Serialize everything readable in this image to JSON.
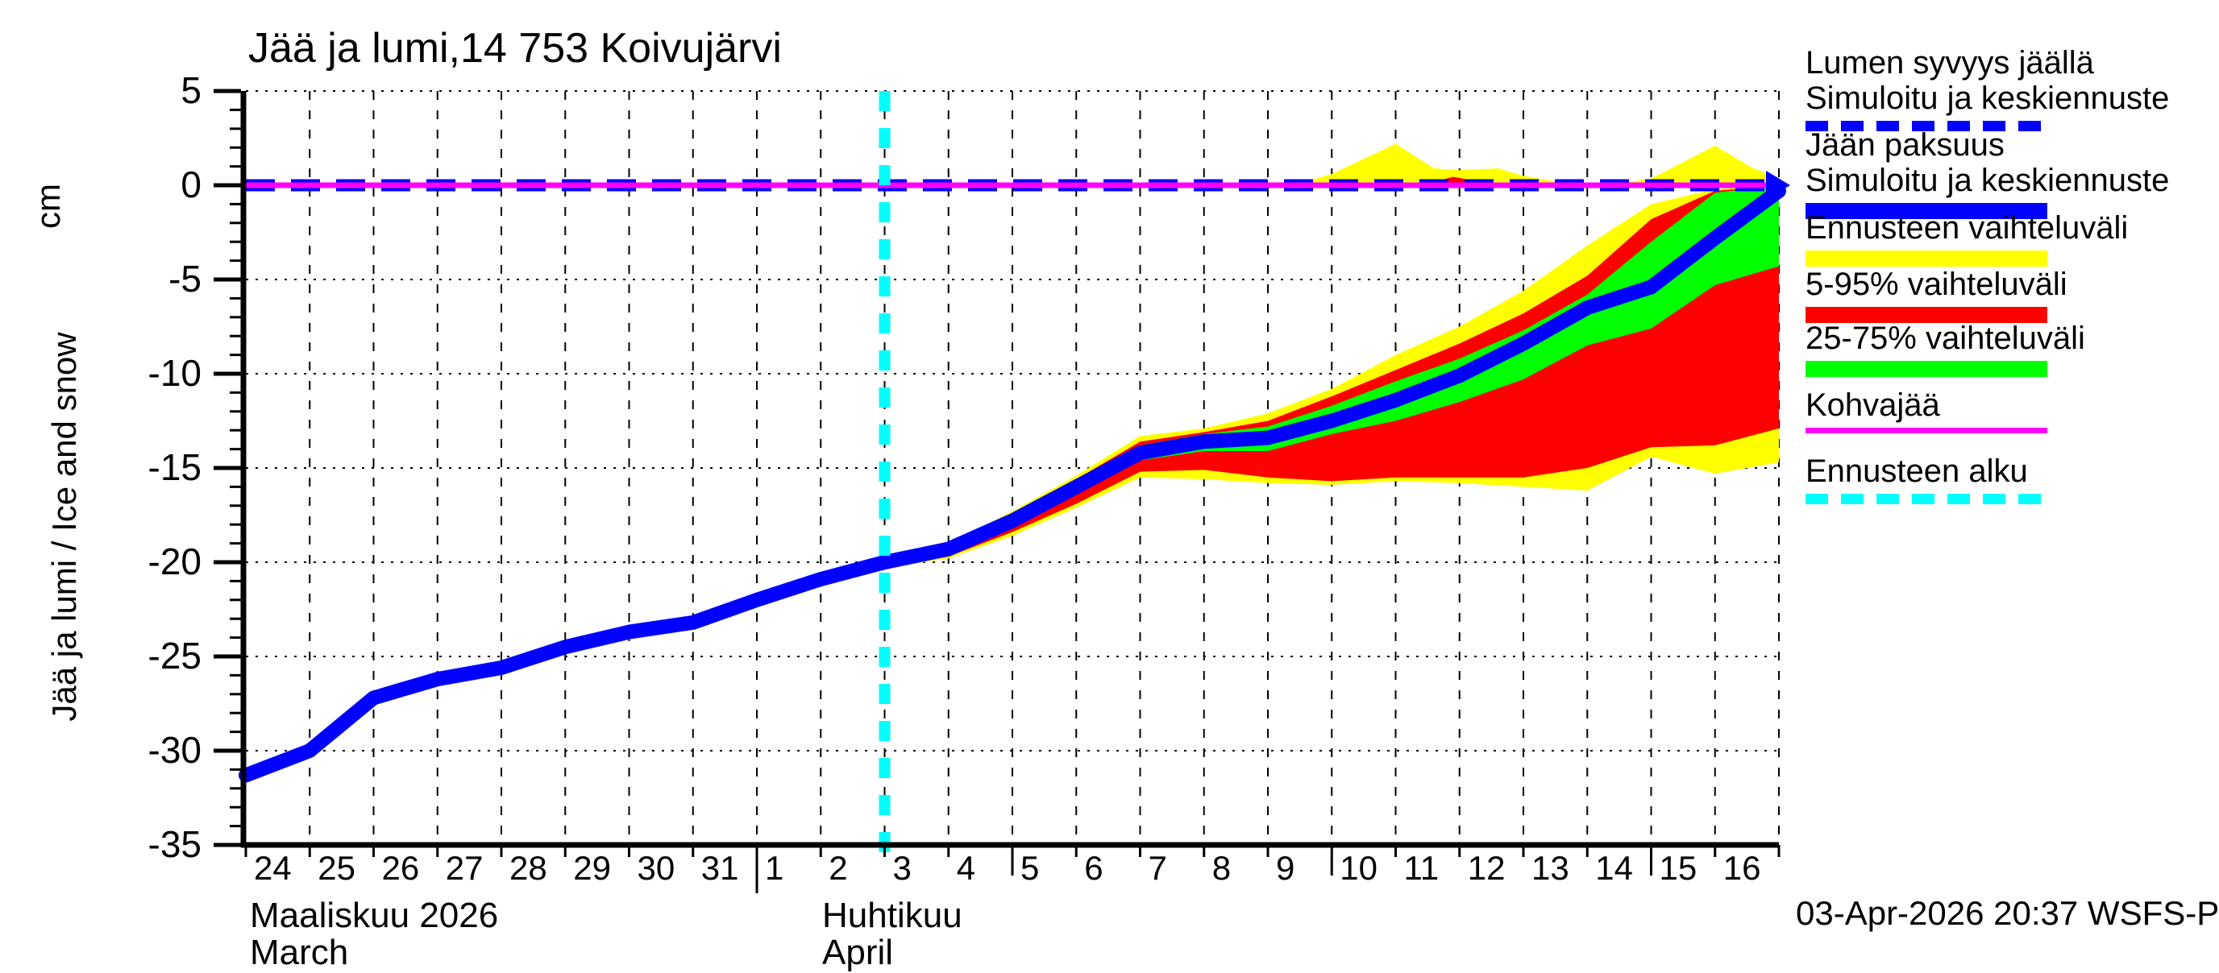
{
  "title": "Jää ja lumi,14 753 Koivujärvi",
  "footer": "03-Apr-2026 20:37 WSFS-P",
  "y_axis": {
    "label": "Jää ja lumi / Ice and snow",
    "unit": "cm",
    "ticks": [
      5,
      0,
      -5,
      -10,
      -15,
      -20,
      -25,
      -30,
      -35
    ]
  },
  "x_axis": {
    "month1_fi": "Maaliskuu 2026",
    "month1_en": "March",
    "month2_fi": "Huhtikuu",
    "month2_en": "April",
    "day_labels": [
      "24",
      "25",
      "26",
      "27",
      "28",
      "29",
      "30",
      "31",
      "1",
      "2",
      "3",
      "4",
      "5",
      "6",
      "7",
      "8",
      "9",
      "10",
      "11",
      "12",
      "13",
      "14",
      "15",
      "16"
    ]
  },
  "legend": {
    "items": [
      {
        "name": "snow-depth",
        "line1": "Lumen syvyys jäällä",
        "line2": "Simuloitu ja keskiennuste",
        "color": "#0000ff",
        "style": "dashed-line"
      },
      {
        "name": "ice-thickness",
        "line1": "Jään paksuus",
        "line2": "Simuloitu ja keskiennuste",
        "color": "#0000ff",
        "style": "solid-bar"
      },
      {
        "name": "forecast-range",
        "line1": "Ennusteen vaihteluväli",
        "line2": "",
        "color": "#ffff00",
        "style": "solid-bar"
      },
      {
        "name": "range-5-95",
        "line1": "5-95% vaihteluväli",
        "line2": "",
        "color": "#ff0000",
        "style": "solid-bar"
      },
      {
        "name": "range-25-75",
        "line1": "25-75% vaihteluväli",
        "line2": "",
        "color": "#00ff00",
        "style": "solid-bar"
      },
      {
        "name": "kohvajaa",
        "line1": "Kohvajää",
        "line2": "",
        "color": "#ff00ff",
        "style": "thin-line"
      },
      {
        "name": "forecast-start",
        "line1": "Ennusteen alku",
        "line2": "",
        "color": "#00ffff",
        "style": "dashed-line"
      }
    ]
  },
  "chart_data": {
    "type": "area+line",
    "title": "Jää ja lumi,14 753 Koivujärvi",
    "ylabel": "Jää ja lumi / Ice and snow (cm)",
    "ylim": [
      -35,
      5
    ],
    "ytick_step": 5,
    "x_start_date": "2026-03-24",
    "x_end_date": "2026-04-17",
    "grid": true,
    "legend_position": "right-outside",
    "colors": {
      "median_line": "#0000ff",
      "snow_line": "#0000ff",
      "forecast_range": "#ffff00",
      "range_5_95": "#ff0000",
      "range_25_75": "#00ff00",
      "kohvajaa": "#ff00ff",
      "forecast_start": "#00ffff",
      "grid": "#000000",
      "background": "#ffffff"
    },
    "forecast_start_day": 10,
    "ice_history": {
      "x": [
        0,
        1,
        2,
        3,
        4,
        5,
        6,
        7,
        8,
        9,
        10
      ],
      "y": [
        -31.3,
        -30.0,
        -27.2,
        -26.2,
        -25.6,
        -24.5,
        -23.7,
        -23.2,
        -22.0,
        -20.9,
        -20.0
      ]
    },
    "ice_forecast": {
      "x": [
        10,
        11,
        12,
        13,
        14,
        15,
        16,
        17,
        18,
        19,
        20,
        21,
        22,
        23,
        24
      ],
      "yellow_top": [
        -19.8,
        -19.0,
        -17.3,
        -15.4,
        -13.3,
        -12.9,
        -12.1,
        -10.8,
        -9.0,
        -7.5,
        -5.6,
        -3.2,
        -1.0,
        -0.2,
        0.0
      ],
      "red_top": [
        -19.9,
        -19.1,
        -17.5,
        -15.6,
        -13.6,
        -13.1,
        -12.5,
        -11.2,
        -9.8,
        -8.4,
        -6.8,
        -4.8,
        -1.8,
        -0.3,
        0.0
      ],
      "green_top": [
        -19.9,
        -19.2,
        -17.6,
        -15.8,
        -13.8,
        -13.2,
        -12.8,
        -11.7,
        -10.4,
        -9.2,
        -7.7,
        -5.8,
        -3.0,
        -0.4,
        0.0
      ],
      "median": [
        -20.0,
        -19.3,
        -17.8,
        -16.0,
        -14.2,
        -13.6,
        -13.4,
        -12.5,
        -11.4,
        -10.1,
        -8.4,
        -6.5,
        -5.4,
        -2.8,
        -0.3
      ],
      "green_bottom": [
        -20.1,
        -19.5,
        -18.1,
        -16.4,
        -14.6,
        -14.1,
        -14.1,
        -13.2,
        -12.5,
        -11.5,
        -10.3,
        -8.5,
        -7.6,
        -5.3,
        -4.3
      ],
      "red_bottom": [
        -20.2,
        -19.7,
        -18.4,
        -16.9,
        -15.2,
        -15.1,
        -15.5,
        -15.7,
        -15.5,
        -15.5,
        -15.5,
        -15.0,
        -13.9,
        -13.8,
        -12.9
      ],
      "yellow_bottom": [
        -20.3,
        -19.8,
        -18.6,
        -17.1,
        -15.5,
        -15.6,
        -15.8,
        -15.9,
        -15.7,
        -15.8,
        -16.0,
        -16.2,
        -14.4,
        -15.3,
        -14.7
      ]
    },
    "snow_depth_on_ice": {
      "median_value": 0.0,
      "kohvajaa_value": 0.0,
      "yellow_band_top": {
        "x": [
          16.4,
          17.0,
          18.0,
          18.6,
          19.0,
          19.6,
          20.0,
          20.6,
          21.0,
          21.5,
          22.0,
          23.0,
          23.6,
          24.0
        ],
        "y": [
          0.0,
          0.6,
          2.2,
          0.9,
          0.8,
          0.9,
          0.5,
          0.15,
          0.1,
          0.1,
          0.35,
          2.1,
          0.9,
          0.4
        ]
      },
      "red_band_top": {
        "x": [
          18.4,
          18.9,
          19.3,
          19.7
        ],
        "y": [
          0.0,
          0.45,
          0.2,
          0.0
        ]
      }
    }
  }
}
